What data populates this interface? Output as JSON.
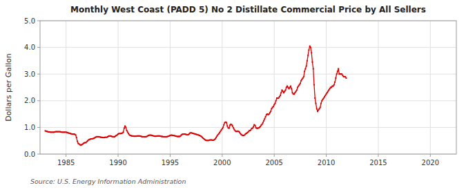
{
  "chart_data": {
    "type": "line",
    "title": "Monthly West Coast (PADD 5) No 2 Distillate Commercial Price by All Sellers",
    "y_label": "Dollars per Gallon",
    "source": "Source: U.S. Energy Information Administration",
    "color": "#dd0000",
    "marker": "square",
    "grid": true,
    "xlim": [
      1982.5,
      2022.5
    ],
    "ylim": [
      0.0,
      5.0
    ],
    "xticks": [
      1985,
      1990,
      1995,
      2000,
      2005,
      2010,
      2015,
      2020
    ],
    "yticks": [
      {
        "value": 0.0,
        "label": "0.0"
      },
      {
        "value": 1.0,
        "label": "1.0"
      },
      {
        "value": 2.0,
        "label": "2.0"
      },
      {
        "value": 3.0,
        "label": "3.0"
      },
      {
        "value": 4.0,
        "label": "4.0"
      },
      {
        "value": 5.0,
        "label": "5.0"
      }
    ],
    "x": [
      1983.0,
      1983.083,
      1983.167,
      1983.25,
      1983.333,
      1983.417,
      1983.5,
      1983.583,
      1983.667,
      1983.75,
      1983.833,
      1983.917,
      1984.0,
      1984.083,
      1984.167,
      1984.25,
      1984.333,
      1984.417,
      1984.5,
      1984.583,
      1984.667,
      1984.75,
      1984.833,
      1984.917,
      1985.0,
      1985.083,
      1985.167,
      1985.25,
      1985.333,
      1985.417,
      1985.5,
      1985.583,
      1985.667,
      1985.75,
      1985.833,
      1985.917,
      1986.0,
      1986.083,
      1986.167,
      1986.25,
      1986.333,
      1986.417,
      1986.5,
      1986.583,
      1986.667,
      1986.75,
      1986.833,
      1986.917,
      1987.0,
      1987.083,
      1987.167,
      1987.25,
      1987.333,
      1987.417,
      1987.5,
      1987.583,
      1987.667,
      1987.75,
      1987.833,
      1987.917,
      1988.0,
      1988.083,
      1988.167,
      1988.25,
      1988.333,
      1988.417,
      1988.5,
      1988.583,
      1988.667,
      1988.75,
      1988.833,
      1988.917,
      1989.0,
      1989.083,
      1989.167,
      1989.25,
      1989.333,
      1989.417,
      1989.5,
      1989.583,
      1989.667,
      1989.75,
      1989.833,
      1989.917,
      1990.0,
      1990.083,
      1990.167,
      1990.25,
      1990.333,
      1990.417,
      1990.5,
      1990.583,
      1990.667,
      1990.75,
      1990.833,
      1990.917,
      1991.0,
      1991.083,
      1991.167,
      1991.25,
      1991.333,
      1991.417,
      1991.5,
      1991.583,
      1991.667,
      1991.75,
      1991.833,
      1991.917,
      1992.0,
      1992.083,
      1992.167,
      1992.25,
      1992.333,
      1992.417,
      1992.5,
      1992.583,
      1992.667,
      1992.75,
      1992.833,
      1992.917,
      1993.0,
      1993.083,
      1993.167,
      1993.25,
      1993.333,
      1993.417,
      1993.5,
      1993.583,
      1993.667,
      1993.75,
      1993.833,
      1993.917,
      1994.0,
      1994.083,
      1994.167,
      1994.25,
      1994.333,
      1994.417,
      1994.5,
      1994.583,
      1994.667,
      1994.75,
      1994.833,
      1994.917,
      1995.0,
      1995.083,
      1995.167,
      1995.25,
      1995.333,
      1995.417,
      1995.5,
      1995.583,
      1995.667,
      1995.75,
      1995.833,
      1995.917,
      1996.0,
      1996.083,
      1996.167,
      1996.25,
      1996.333,
      1996.417,
      1996.5,
      1996.583,
      1996.667,
      1996.75,
      1996.833,
      1996.917,
      1997.0,
      1997.083,
      1997.167,
      1997.25,
      1997.333,
      1997.417,
      1997.5,
      1997.583,
      1997.667,
      1997.75,
      1997.833,
      1997.917,
      1998.0,
      1998.083,
      1998.167,
      1998.25,
      1998.333,
      1998.417,
      1998.5,
      1998.583,
      1998.667,
      1998.75,
      1998.833,
      1998.917,
      1999.0,
      1999.083,
      1999.167,
      1999.25,
      1999.333,
      1999.417,
      1999.5,
      1999.583,
      1999.667,
      1999.75,
      1999.833,
      1999.917,
      2000.0,
      2000.083,
      2000.167,
      2000.25,
      2000.333,
      2000.417,
      2000.5,
      2000.583,
      2000.667,
      2000.75,
      2000.833,
      2000.917,
      2001.0,
      2001.083,
      2001.167,
      2001.25,
      2001.333,
      2001.417,
      2001.5,
      2001.583,
      2001.667,
      2001.75,
      2001.833,
      2001.917,
      2002.0,
      2002.083,
      2002.167,
      2002.25,
      2002.333,
      2002.417,
      2002.5,
      2002.583,
      2002.667,
      2002.75,
      2002.833,
      2002.917,
      2003.0,
      2003.083,
      2003.167,
      2003.25,
      2003.333,
      2003.417,
      2003.5,
      2003.583,
      2003.667,
      2003.75,
      2003.833,
      2003.917,
      2004.0,
      2004.083,
      2004.167,
      2004.25,
      2004.333,
      2004.417,
      2004.5,
      2004.583,
      2004.667,
      2004.75,
      2004.833,
      2004.917,
      2005.0,
      2005.083,
      2005.167,
      2005.25,
      2005.333,
      2005.417,
      2005.5,
      2005.583,
      2005.667,
      2005.75,
      2005.833,
      2005.917,
      2006.0,
      2006.083,
      2006.167,
      2006.25,
      2006.333,
      2006.417,
      2006.5,
      2006.583,
      2006.667,
      2006.75,
      2006.833,
      2006.917,
      2007.0,
      2007.083,
      2007.167,
      2007.25,
      2007.333,
      2007.417,
      2007.5,
      2007.583,
      2007.667,
      2007.75,
      2007.833,
      2007.917,
      2008.0,
      2008.083,
      2008.167,
      2008.25,
      2008.333,
      2008.417,
      2008.5,
      2008.583,
      2008.667,
      2008.75,
      2008.833,
      2008.917,
      2009.0,
      2009.083,
      2009.167,
      2009.25,
      2009.333,
      2009.417,
      2009.5,
      2009.583,
      2009.667,
      2009.75,
      2009.833,
      2009.917,
      2010.0,
      2010.083,
      2010.167,
      2010.25,
      2010.333,
      2010.417,
      2010.5,
      2010.583,
      2010.667,
      2010.75,
      2010.833,
      2010.917,
      2011.0,
      2011.083,
      2011.167,
      2011.25,
      2011.333,
      2011.417,
      2011.5,
      2011.583,
      2011.667,
      2011.75,
      2011.833,
      2011.917
    ],
    "values": [
      0.87,
      0.86,
      0.85,
      0.84,
      0.83,
      0.83,
      0.82,
      0.82,
      0.82,
      0.82,
      0.82,
      0.83,
      0.84,
      0.84,
      0.84,
      0.84,
      0.84,
      0.84,
      0.83,
      0.82,
      0.82,
      0.82,
      0.82,
      0.82,
      0.82,
      0.81,
      0.8,
      0.79,
      0.78,
      0.77,
      0.76,
      0.75,
      0.75,
      0.75,
      0.74,
      0.72,
      0.62,
      0.48,
      0.4,
      0.38,
      0.35,
      0.34,
      0.35,
      0.37,
      0.4,
      0.42,
      0.43,
      0.43,
      0.47,
      0.5,
      0.53,
      0.55,
      0.56,
      0.57,
      0.57,
      0.58,
      0.59,
      0.61,
      0.63,
      0.65,
      0.65,
      0.65,
      0.65,
      0.64,
      0.63,
      0.63,
      0.62,
      0.62,
      0.62,
      0.63,
      0.63,
      0.63,
      0.65,
      0.67,
      0.68,
      0.68,
      0.67,
      0.66,
      0.65,
      0.65,
      0.65,
      0.68,
      0.7,
      0.72,
      0.75,
      0.77,
      0.77,
      0.77,
      0.78,
      0.79,
      0.82,
      0.97,
      1.05,
      1.0,
      0.88,
      0.82,
      0.77,
      0.72,
      0.7,
      0.69,
      0.68,
      0.68,
      0.67,
      0.67,
      0.67,
      0.67,
      0.68,
      0.68,
      0.68,
      0.68,
      0.67,
      0.66,
      0.65,
      0.65,
      0.65,
      0.65,
      0.65,
      0.66,
      0.68,
      0.7,
      0.71,
      0.71,
      0.71,
      0.7,
      0.69,
      0.68,
      0.67,
      0.67,
      0.67,
      0.68,
      0.68,
      0.68,
      0.68,
      0.67,
      0.66,
      0.66,
      0.65,
      0.65,
      0.65,
      0.65,
      0.65,
      0.66,
      0.67,
      0.68,
      0.7,
      0.71,
      0.71,
      0.7,
      0.7,
      0.69,
      0.68,
      0.67,
      0.66,
      0.66,
      0.66,
      0.66,
      0.68,
      0.72,
      0.74,
      0.75,
      0.75,
      0.75,
      0.74,
      0.73,
      0.72,
      0.73,
      0.76,
      0.79,
      0.8,
      0.79,
      0.78,
      0.77,
      0.76,
      0.75,
      0.74,
      0.73,
      0.72,
      0.71,
      0.7,
      0.68,
      0.66,
      0.63,
      0.6,
      0.57,
      0.54,
      0.52,
      0.51,
      0.51,
      0.51,
      0.52,
      0.53,
      0.53,
      0.53,
      0.52,
      0.52,
      0.54,
      0.57,
      0.62,
      0.67,
      0.72,
      0.76,
      0.8,
      0.85,
      0.9,
      0.95,
      1.0,
      1.1,
      1.18,
      1.2,
      1.18,
      1.05,
      0.98,
      0.97,
      1.08,
      1.12,
      1.1,
      1.05,
      0.98,
      0.92,
      0.87,
      0.85,
      0.85,
      0.86,
      0.85,
      0.82,
      0.77,
      0.73,
      0.71,
      0.7,
      0.7,
      0.72,
      0.76,
      0.78,
      0.8,
      0.83,
      0.87,
      0.88,
      0.9,
      0.96,
      0.97,
      1.02,
      1.1,
      1.07,
      0.98,
      0.97,
      0.97,
      0.98,
      1.0,
      1.03,
      1.08,
      1.12,
      1.18,
      1.25,
      1.32,
      1.4,
      1.48,
      1.5,
      1.48,
      1.5,
      1.55,
      1.6,
      1.7,
      1.75,
      1.78,
      1.85,
      1.9,
      2.0,
      2.1,
      2.1,
      2.1,
      2.15,
      2.2,
      2.3,
      2.4,
      2.35,
      2.3,
      2.35,
      2.4,
      2.5,
      2.55,
      2.5,
      2.45,
      2.5,
      2.55,
      2.45,
      2.3,
      2.25,
      2.25,
      2.3,
      2.35,
      2.4,
      2.5,
      2.55,
      2.6,
      2.65,
      2.75,
      2.8,
      2.85,
      2.9,
      3.1,
      3.2,
      3.3,
      3.5,
      3.7,
      3.9,
      4.05,
      4.0,
      3.8,
      3.45,
      3.2,
      2.6,
      2.1,
      1.9,
      1.7,
      1.6,
      1.65,
      1.7,
      1.75,
      1.9,
      2.0,
      2.05,
      2.1,
      2.15,
      2.2,
      2.25,
      2.3,
      2.35,
      2.4,
      2.45,
      2.5,
      2.5,
      2.55,
      2.55,
      2.6,
      2.7,
      2.85,
      3.0,
      3.1,
      3.2,
      3.0,
      3.0,
      3.0,
      3.0,
      2.95,
      2.9,
      2.9,
      2.9,
      2.85
    ]
  }
}
